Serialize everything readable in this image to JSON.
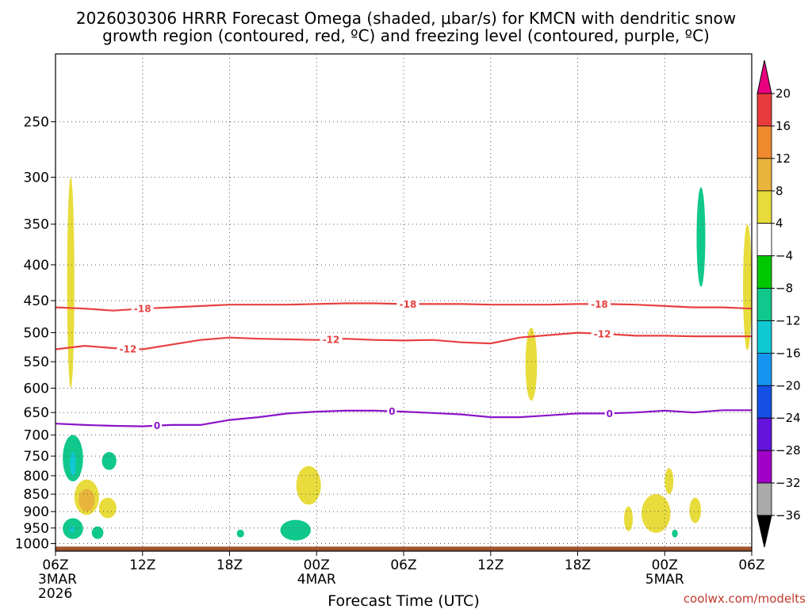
{
  "chart_data": {
    "type": "heatmap",
    "title_lines": [
      "2026030306 HRRR Forecast Omega (shaded, μbar/s) for KMCN with dendritic snow",
      "growth region (contoured, red, ºC) and freezing level (contoured, purple, ºC)"
    ],
    "xlabel": "Forecast Time (UTC)",
    "credit": "coolwx.com/modelts",
    "x_range_hours": [
      0,
      48
    ],
    "x_ticks": [
      {
        "hour": 0,
        "label": "06Z",
        "date": "3MAR",
        "year": "2026"
      },
      {
        "hour": 6,
        "label": "12Z"
      },
      {
        "hour": 12,
        "label": "18Z"
      },
      {
        "hour": 18,
        "label": "00Z",
        "date": "4MAR"
      },
      {
        "hour": 24,
        "label": "06Z"
      },
      {
        "hour": 30,
        "label": "12Z"
      },
      {
        "hour": 36,
        "label": "18Z"
      },
      {
        "hour": 42,
        "label": "00Z",
        "date": "5MAR"
      },
      {
        "hour": 48,
        "label": "06Z"
      }
    ],
    "y_axis": {
      "unit": "hPa",
      "range": [
        200,
        1025
      ],
      "scale": "log",
      "ticks": [
        250,
        300,
        350,
        400,
        450,
        500,
        550,
        600,
        650,
        700,
        750,
        800,
        850,
        900,
        950,
        1000
      ]
    },
    "colorbar": {
      "unit": "μbar/s",
      "labels": [
        "20",
        "16",
        "12",
        "8",
        "4",
        "−4",
        "−8",
        "−12",
        "−16",
        "−20",
        "−24",
        "−28",
        "−32",
        "−36"
      ],
      "bins": [
        {
          "from": 20,
          "to": 24,
          "color": "#e8007f"
        },
        {
          "from": 16,
          "to": 20,
          "color": "#e83c3c"
        },
        {
          "from": 12,
          "to": 16,
          "color": "#f08a2e"
        },
        {
          "from": 8,
          "to": 12,
          "color": "#e8b43c"
        },
        {
          "from": 4,
          "to": 8,
          "color": "#e8dc3c"
        },
        {
          "from": -4,
          "to": 4,
          "color": "#ffffff"
        },
        {
          "from": -8,
          "to": -4,
          "color": "#00c800"
        },
        {
          "from": -12,
          "to": -8,
          "color": "#10c88c"
        },
        {
          "from": -16,
          "to": -12,
          "color": "#10c8d2"
        },
        {
          "from": -20,
          "to": -16,
          "color": "#1496f0"
        },
        {
          "from": -24,
          "to": -20,
          "color": "#1450e6"
        },
        {
          "from": -28,
          "to": -24,
          "color": "#6414dc"
        },
        {
          "from": -32,
          "to": -28,
          "color": "#a000c8"
        },
        {
          "from": -36,
          "to": -32,
          "color": "#aaaaaa"
        },
        {
          "from": -40,
          "to": -36,
          "color": "#000000"
        }
      ]
    },
    "ground": {
      "color": "#a0522d",
      "from_pressure": 1010
    },
    "contours": [
      {
        "name": "temp-minus-18",
        "value": -18,
        "label": "-18",
        "color": "#e84040",
        "points": [
          [
            0,
            460
          ],
          [
            2,
            462
          ],
          [
            4,
            465
          ],
          [
            6,
            462
          ],
          [
            8,
            460
          ],
          [
            10,
            458
          ],
          [
            12,
            456
          ],
          [
            14,
            456
          ],
          [
            16,
            456
          ],
          [
            18,
            455
          ],
          [
            20,
            454
          ],
          [
            22,
            454
          ],
          [
            24,
            455
          ],
          [
            26,
            455
          ],
          [
            28,
            455
          ],
          [
            30,
            456
          ],
          [
            32,
            456
          ],
          [
            34,
            456
          ],
          [
            36,
            455
          ],
          [
            38,
            455
          ],
          [
            40,
            456
          ],
          [
            42,
            458
          ],
          [
            44,
            460
          ],
          [
            46,
            460
          ],
          [
            48,
            462
          ]
        ],
        "labels_at": [
          6,
          24.3,
          37.5
        ]
      },
      {
        "name": "temp-minus-12",
        "value": -12,
        "label": "-12",
        "color": "#e84040",
        "points": [
          [
            0,
            528
          ],
          [
            2,
            522
          ],
          [
            4,
            526
          ],
          [
            6,
            528
          ],
          [
            8,
            520
          ],
          [
            10,
            512
          ],
          [
            12,
            508
          ],
          [
            14,
            510
          ],
          [
            16,
            511
          ],
          [
            18,
            512
          ],
          [
            20,
            510
          ],
          [
            22,
            512
          ],
          [
            24,
            513
          ],
          [
            26,
            512
          ],
          [
            28,
            516
          ],
          [
            30,
            518
          ],
          [
            32,
            508
          ],
          [
            34,
            504
          ],
          [
            36,
            500
          ],
          [
            38,
            502
          ],
          [
            40,
            505
          ],
          [
            42,
            505
          ],
          [
            44,
            506
          ],
          [
            46,
            506
          ],
          [
            48,
            506
          ]
        ],
        "labels_at": [
          5,
          19,
          37.7
        ]
      },
      {
        "name": "freezing-level",
        "value": 0,
        "label": "0",
        "color": "#8c14c8",
        "points": [
          [
            0,
            674
          ],
          [
            2,
            677
          ],
          [
            4,
            679
          ],
          [
            6,
            680
          ],
          [
            8,
            677
          ],
          [
            10,
            677
          ],
          [
            12,
            666
          ],
          [
            14,
            660
          ],
          [
            16,
            652
          ],
          [
            18,
            648
          ],
          [
            20,
            646
          ],
          [
            22,
            646
          ],
          [
            24,
            648
          ],
          [
            26,
            651
          ],
          [
            28,
            654
          ],
          [
            30,
            660
          ],
          [
            32,
            660
          ],
          [
            34,
            656
          ],
          [
            36,
            652
          ],
          [
            38,
            652
          ],
          [
            40,
            650
          ],
          [
            42,
            646
          ],
          [
            44,
            650
          ],
          [
            46,
            645
          ],
          [
            48,
            645
          ]
        ],
        "labels_at": [
          7,
          23.2,
          38.2
        ]
      }
    ],
    "shaded_regions": [
      {
        "name": "omega-pos-1",
        "bin": 4,
        "x": [
          0.8,
          1.3
        ],
        "p": [
          300,
          600
        ]
      },
      {
        "name": "omega-neg-1",
        "bin": -8,
        "x": [
          0.5,
          1.9
        ],
        "p": [
          700,
          815
        ]
      },
      {
        "name": "omega-neg-2",
        "bin": -12,
        "x": [
          1.0,
          1.4
        ],
        "p": [
          740,
          800
        ]
      },
      {
        "name": "omega-neg-3",
        "bin": -8,
        "x": [
          3.2,
          4.2
        ],
        "p": [
          740,
          785
        ]
      },
      {
        "name": "omega-pos-2",
        "bin": 4,
        "x": [
          1.3,
          3.0
        ],
        "p": [
          810,
          910
        ]
      },
      {
        "name": "omega-pos-3",
        "bin": 8,
        "x": [
          1.6,
          2.7
        ],
        "p": [
          835,
          900
        ]
      },
      {
        "name": "omega-pos-4",
        "bin": 4,
        "x": [
          3.0,
          4.2
        ],
        "p": [
          860,
          920
        ]
      },
      {
        "name": "omega-neg-4",
        "bin": -8,
        "x": [
          0.5,
          1.9
        ],
        "p": [
          920,
          985
        ]
      },
      {
        "name": "omega-neg-5",
        "bin": -12,
        "x": [
          1.0,
          1.3
        ],
        "p": [
          945,
          965
        ]
      },
      {
        "name": "omega-neg-6",
        "bin": -8,
        "x": [
          2.5,
          3.3
        ],
        "p": [
          945,
          985
        ]
      },
      {
        "name": "omega-neg-7",
        "bin": -8,
        "x": [
          12.5,
          13.0
        ],
        "p": [
          955,
          980
        ]
      },
      {
        "name": "omega-pos-5",
        "bin": 4,
        "x": [
          16.6,
          18.3
        ],
        "p": [
          775,
          880
        ]
      },
      {
        "name": "omega-neg-8",
        "bin": -8,
        "x": [
          15.5,
          17.6
        ],
        "p": [
          925,
          990
        ]
      },
      {
        "name": "omega-pos-6",
        "bin": 4,
        "x": [
          32.4,
          33.2
        ],
        "p": [
          492,
          625
        ]
      },
      {
        "name": "omega-pos-7",
        "bin": 4,
        "x": [
          39.2,
          39.8
        ],
        "p": [
          885,
          960
        ]
      },
      {
        "name": "omega-pos-8",
        "bin": 4,
        "x": [
          40.4,
          42.4
        ],
        "p": [
          850,
          965
        ]
      },
      {
        "name": "omega-pos-9",
        "bin": 4,
        "x": [
          42.0,
          42.6
        ],
        "p": [
          780,
          850
        ]
      },
      {
        "name": "omega-neg-9",
        "bin": -8,
        "x": [
          42.5,
          42.9
        ],
        "p": [
          955,
          980
        ]
      },
      {
        "name": "omega-pos-10",
        "bin": 4,
        "x": [
          43.7,
          44.5
        ],
        "p": [
          860,
          935
        ]
      },
      {
        "name": "omega-neg-10",
        "bin": -8,
        "x": [
          44.2,
          44.8
        ],
        "p": [
          310,
          430
        ]
      },
      {
        "name": "omega-pos-11",
        "bin": 4,
        "x": [
          47.4,
          48.0
        ],
        "p": [
          350,
          530
        ]
      }
    ]
  }
}
